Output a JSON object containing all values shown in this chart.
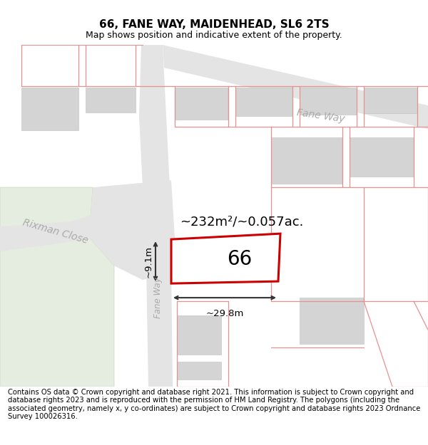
{
  "title": "66, FANE WAY, MAIDENHEAD, SL6 2TS",
  "subtitle": "Map shows position and indicative extent of the property.",
  "footer": "Contains OS data © Crown copyright and database right 2021. This information is subject to Crown copyright and database rights 2023 and is reproduced with the permission of HM Land Registry. The polygons (including the associated geometry, namely x, y co-ordinates) are subject to Crown copyright and database rights 2023 Ordnance Survey 100026316.",
  "area_label": "~232m²/~0.057ac.",
  "width_label": "~29.8m",
  "height_label": "~9.1m",
  "property_number": "66",
  "road_label_fane_way": "Fane Way",
  "road_label_rixman": "Rixman Close",
  "road_label_fane_way_vert": "Fane Way",
  "bg_color": "#ffffff",
  "map_bg": "#f8f8f8",
  "road_fill": "#e4e4e4",
  "block_fill": "#d4d4d4",
  "green_fill": "#e5ede0",
  "green_edge": "#c8d8c0",
  "property_fill": "#ffffff",
  "property_stroke": "#cc0000",
  "road_line_color": "#e89090",
  "dim_line_color": "#333333",
  "label_color": "#aaaaaa",
  "title_fontsize": 11,
  "subtitle_fontsize": 9,
  "footer_fontsize": 7.2,
  "area_fontsize": 13,
  "prop_num_fontsize": 20,
  "road_label_fontsize": 10,
  "dim_fontsize": 9.5
}
